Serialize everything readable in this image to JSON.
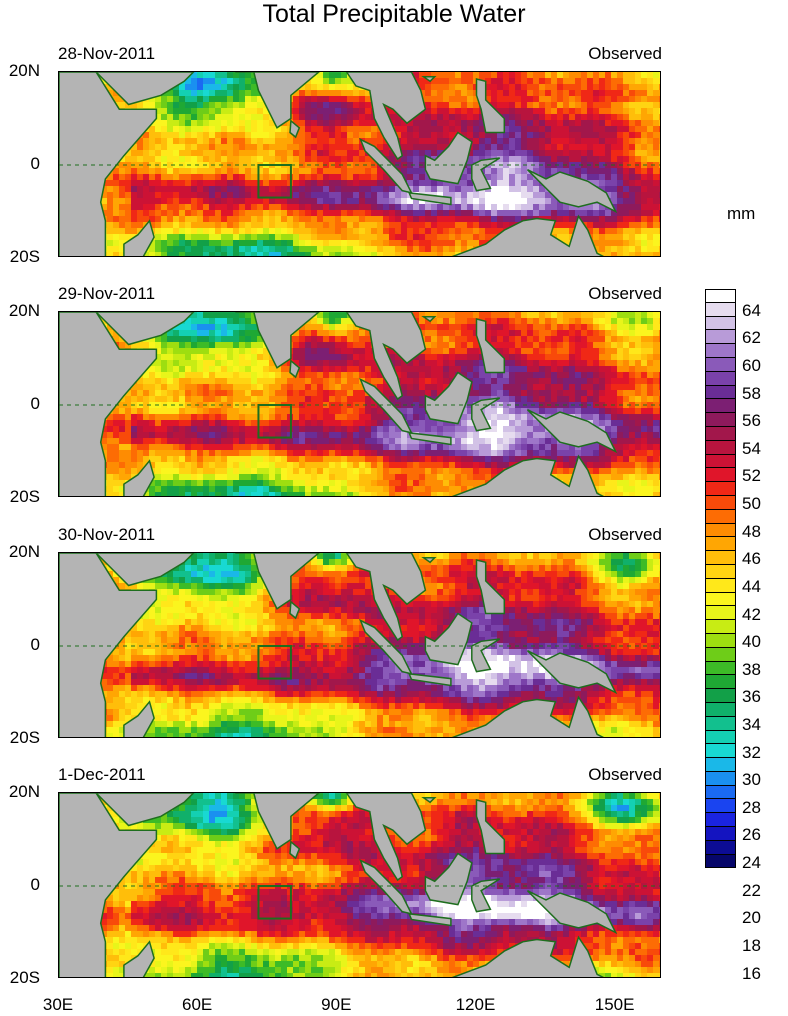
{
  "title": "Total Precipitable Water",
  "units": "mm",
  "chart_data": {
    "type": "heatmap",
    "variable": "Total Precipitable Water",
    "units": "mm",
    "x_axis": {
      "ticks": [
        "30E",
        "60E",
        "90E",
        "120E",
        "150E"
      ],
      "range_deg_east": [
        30,
        160
      ]
    },
    "y_axis": {
      "ticks": [
        "20N",
        "0",
        "20S"
      ],
      "range_deg_north": [
        -20,
        20
      ]
    },
    "colorbar": {
      "labels": [
        "64",
        "62",
        "60",
        "58",
        "56",
        "54",
        "52",
        "50",
        "48",
        "46",
        "44",
        "42",
        "40",
        "38",
        "36",
        "34",
        "32",
        "30",
        "28",
        "26",
        "24",
        "22",
        "20",
        "18",
        "16"
      ],
      "min": 15,
      "max": 66
    },
    "panels": [
      {
        "date": "28-Nov-2011",
        "status": "Observed"
      },
      {
        "date": "29-Nov-2011",
        "status": "Observed"
      },
      {
        "date": "30-Nov-2011",
        "status": "Observed"
      },
      {
        "date": "1-Dec-2011",
        "status": "Observed"
      }
    ],
    "box_region": {
      "lon": [
        73,
        80
      ],
      "lat": [
        -7,
        0
      ]
    },
    "equator_dashed": true
  },
  "colors": {
    "land": "#b4b4b4",
    "coast": "#1e6e1e",
    "colorbar": [
      "#ffffff",
      "#e6dcef",
      "#d2c2e6",
      "#b89bd8",
      "#9e76c9",
      "#8a5ab9",
      "#7a42aa",
      "#6a2d96",
      "#7c1f73",
      "#8e1a5c",
      "#a2174b",
      "#b8143e",
      "#cc1235",
      "#e0152a",
      "#f02816",
      "#f84a0a",
      "#fd6c04",
      "#fe8c02",
      "#ffa603",
      "#ffbe0a",
      "#ffd412",
      "#ffe81a",
      "#fbf51e",
      "#e8f51a",
      "#c8ec14",
      "#9ede10",
      "#6ecd18",
      "#3dbb27",
      "#1fa834",
      "#12a048",
      "#10b06a",
      "#12c08e",
      "#14d0b2",
      "#18d9d2",
      "#1ab8e8",
      "#1a90f0",
      "#1a6af2",
      "#1a44f0",
      "#1a24e0",
      "#1414c0",
      "#0c0c94",
      "#06066a"
    ]
  }
}
